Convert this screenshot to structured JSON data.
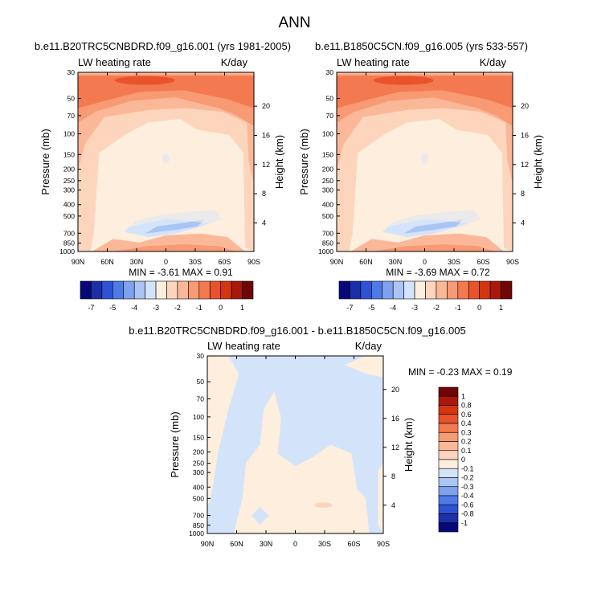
{
  "page": {
    "title": "ANN"
  },
  "panels": [
    {
      "case": "b.e11.B20TRC5CNBDRD.f09_g16.001 (yrs 1981-2005)",
      "left_label": "LW heating rate",
      "right_label": "K/day",
      "stats": "MIN = -3.61  MAX =  0.91"
    },
    {
      "case": "b.e11.B1850C5CN.f09_g16.005 (yrs 533-557)",
      "left_label": "LW heating rate",
      "right_label": "K/day",
      "stats": "MIN = -3.69  MAX =  0.72"
    },
    {
      "case": "b.e11.B20TRC5CNBDRD.f09_g16.001 - b.e11.B1850C5CN.f09_g16.005",
      "left_label": "LW heating rate",
      "right_label": "K/day",
      "stats": "MIN =  -0.23  MAX =  0.19"
    }
  ],
  "chart_data": [
    {
      "type": "heatmap",
      "title": "b.e11.B20TRC5CNBDRD.f09_g16.001 (yrs 1981-2005)",
      "ylabel": "Pressure (mb)",
      "ylabel_right": "Height (km)",
      "x_ticks": [
        "90N",
        "60N",
        "30N",
        "0",
        "30S",
        "60S",
        "90S"
      ],
      "y_ticks": [
        30,
        50,
        70,
        100,
        150,
        200,
        250,
        300,
        400,
        500,
        700,
        850,
        1000
      ],
      "y_ticks_right": [
        20,
        16,
        12,
        8,
        4
      ],
      "colorbar": {
        "levels": [
          -7,
          -5,
          -4,
          -3,
          -2,
          -1,
          0,
          1
        ],
        "colors": [
          "#08087a",
          "#1c2fa6",
          "#2f52d4",
          "#4f79e6",
          "#7fa2ef",
          "#aac4f5",
          "#d3e4fa",
          "#fdeedd",
          "#fcd5bc",
          "#fbb899",
          "#f89a73",
          "#f37951",
          "#e8532c",
          "#d3350f",
          "#a9180a",
          "#6e0706"
        ]
      },
      "min": -3.61,
      "max": 0.91
    },
    {
      "type": "heatmap",
      "title": "b.e11.B1850C5CN.f09_g16.005 (yrs 533-557)",
      "ylabel": "Pressure (mb)",
      "ylabel_right": "Height (km)",
      "x_ticks": [
        "90N",
        "60N",
        "30N",
        "0",
        "30S",
        "60S",
        "90S"
      ],
      "y_ticks": [
        30,
        50,
        70,
        100,
        150,
        200,
        250,
        300,
        400,
        500,
        700,
        850,
        1000
      ],
      "y_ticks_right": [
        20,
        16,
        12,
        8,
        4
      ],
      "colorbar": {
        "levels": [
          -7,
          -5,
          -4,
          -3,
          -2,
          -1,
          0,
          1
        ],
        "colors": [
          "#08087a",
          "#1c2fa6",
          "#2f52d4",
          "#4f79e6",
          "#7fa2ef",
          "#aac4f5",
          "#d3e4fa",
          "#fdeedd",
          "#fcd5bc",
          "#fbb899",
          "#f89a73",
          "#f37951",
          "#e8532c",
          "#d3350f",
          "#a9180a",
          "#6e0706"
        ]
      },
      "min": -3.69,
      "max": 0.72
    },
    {
      "type": "heatmap",
      "title": "b.e11.B20TRC5CNBDRD.f09_g16.001 - b.e11.B1850C5CN.f09_g16.005",
      "ylabel": "Pressure (mb)",
      "ylabel_right": "Height (km)",
      "x_ticks": [
        "90N",
        "60N",
        "30N",
        "0",
        "30S",
        "60S",
        "90S"
      ],
      "y_ticks": [
        30,
        50,
        70,
        100,
        150,
        200,
        250,
        300,
        400,
        500,
        700,
        850,
        1000
      ],
      "y_ticks_right": [
        20,
        16,
        12,
        8,
        4
      ],
      "colorbar": {
        "levels": [
          "1",
          "0.8",
          "0.6",
          "0.4",
          "0.3",
          "0.2",
          "0.1",
          "0",
          "-0.1",
          "-0.2",
          "-0.3",
          "-0.4",
          "-0.6",
          "-0.8",
          "-1"
        ],
        "colors": [
          "#a9180a",
          "#d3350f",
          "#e8532c",
          "#f37951",
          "#f89a73",
          "#fbb899",
          "#fcd5bc",
          "#fdeedd",
          "#d3e4fa",
          "#aac4f5",
          "#7fa2ef",
          "#4f79e6",
          "#2f52d4",
          "#1c2fa6",
          "#08087a"
        ]
      },
      "min": -0.23,
      "max": 0.19
    }
  ]
}
